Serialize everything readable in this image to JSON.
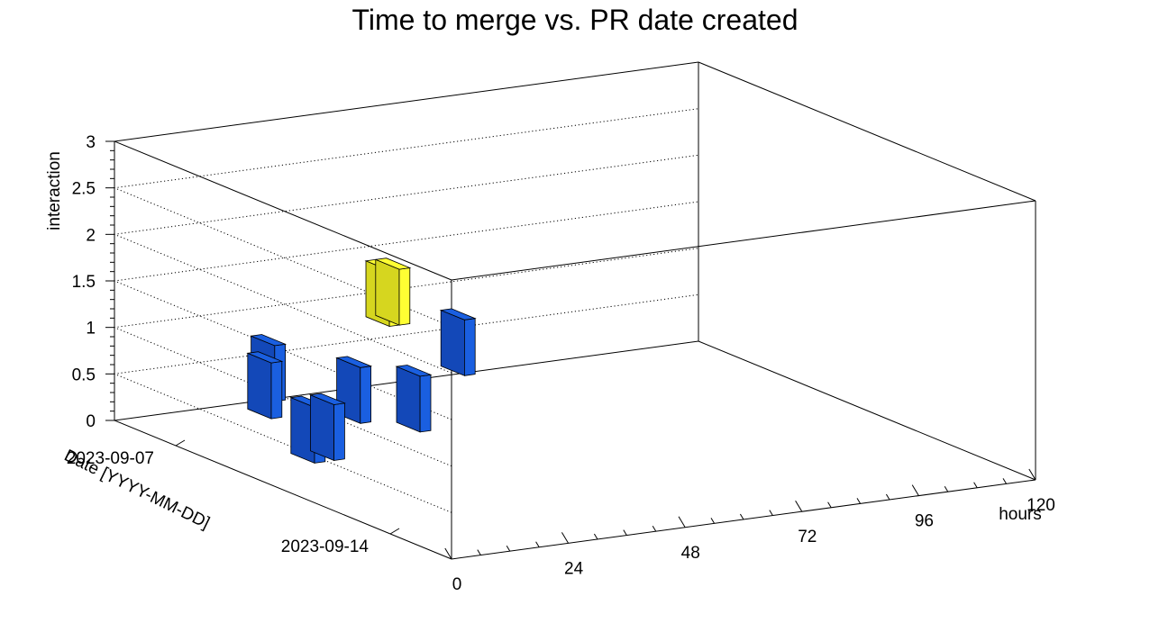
{
  "chart_data": {
    "type": "bar3d",
    "title": "Time to merge vs. PR date created",
    "xlabel": "hours",
    "ylabel": "Date [YYYY-MM-DD]",
    "zlabel": "interaction",
    "x_range": [
      0,
      120
    ],
    "x_ticks": [
      "0",
      "24",
      "48",
      "72",
      "96",
      "120"
    ],
    "y_ticks": [
      "2023-09-07",
      "2023-09-14"
    ],
    "z_range": [
      0,
      3
    ],
    "z_ticks": [
      "0",
      "0.5",
      "1",
      "1.5",
      "2",
      "2.5",
      "3"
    ],
    "grid": true,
    "colors": {
      "level1": "#1a5fe0",
      "level2": "#ffff33",
      "level1_side": "#1348b8",
      "level2_side": "#d6d61f",
      "mid": "#1aabc0"
    },
    "bars": [
      {
        "hours": 2,
        "date": "2023-09-11",
        "value": 1
      },
      {
        "hours": 6,
        "date": "2023-09-11",
        "value": 1
      },
      {
        "hours": 12,
        "date": "2023-09-08",
        "value": 1
      },
      {
        "hours": 19,
        "date": "2023-09-07",
        "value": 1
      },
      {
        "hours": 24,
        "date": "2023-09-09",
        "value": 1
      },
      {
        "hours": 30,
        "date": "2023-09-09",
        "value": 2
      },
      {
        "hours": 30,
        "date": "2023-09-10",
        "value": 1
      },
      {
        "hours": 32,
        "date": "2023-09-09",
        "value": 2
      },
      {
        "hours": 58,
        "date": "2023-09-07",
        "value": 1
      }
    ]
  }
}
